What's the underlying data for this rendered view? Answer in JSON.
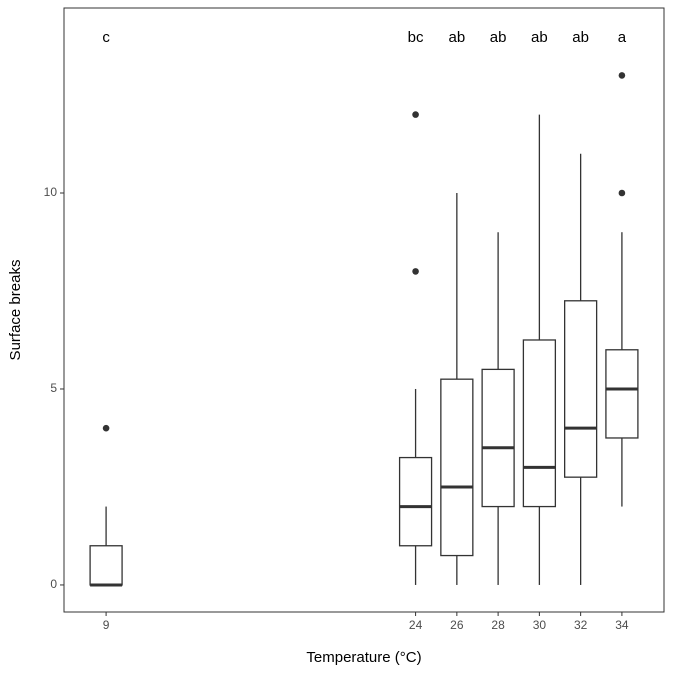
{
  "chart_data": {
    "type": "box",
    "x_label": "Temperature (°C)",
    "y_label": "Surface breaks",
    "xlim": [
      6.96,
      36.04
    ],
    "ylim": [
      -0.69,
      14.72
    ],
    "xticks": [
      9,
      24,
      26,
      28,
      30,
      32,
      34
    ],
    "yticks": [
      0,
      5,
      10
    ],
    "grid": false,
    "color": "#333333",
    "boxes": [
      {
        "x": 9,
        "whisker_low": 0,
        "q1": 0,
        "median": 0,
        "q3": 1,
        "whisker_high": 2,
        "outliers": [
          4
        ],
        "letter": "c"
      },
      {
        "x": 24,
        "whisker_low": 0,
        "q1": 1,
        "median": 2,
        "q3": 3.25,
        "whisker_high": 5,
        "outliers": [
          8,
          12
        ],
        "letter": "bc"
      },
      {
        "x": 26,
        "whisker_low": 0,
        "q1": 0.75,
        "median": 2.5,
        "q3": 5.25,
        "whisker_high": 10,
        "outliers": [],
        "letter": "ab"
      },
      {
        "x": 28,
        "whisker_low": 0,
        "q1": 2,
        "median": 3.5,
        "q3": 5.5,
        "whisker_high": 9,
        "outliers": [],
        "letter": "ab"
      },
      {
        "x": 30,
        "whisker_low": 0,
        "q1": 2,
        "median": 3,
        "q3": 6.25,
        "whisker_high": 12,
        "outliers": [],
        "letter": "ab"
      },
      {
        "x": 32,
        "whisker_low": 0,
        "q1": 2.75,
        "median": 4,
        "q3": 7.25,
        "whisker_high": 11,
        "outliers": [],
        "letter": "ab"
      },
      {
        "x": 34,
        "whisker_low": 2,
        "q1": 3.75,
        "median": 5,
        "q3": 6,
        "whisker_high": 9,
        "outliers": [
          10,
          13
        ],
        "letter": "a"
      }
    ]
  }
}
